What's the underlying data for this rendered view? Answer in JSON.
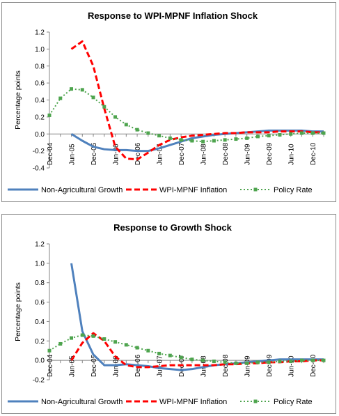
{
  "chart_data": [
    {
      "type": "line",
      "title": "Response to WPI-MPNF Inflation Shock",
      "ylabel": "Percentage points",
      "xlabel": "",
      "ylim": [
        -0.4,
        1.2
      ],
      "yticks": [
        "-0.4",
        "-0.2",
        "0.0",
        "0.2",
        "0.4",
        "0.6",
        "0.8",
        "1.0",
        "1.2"
      ],
      "ytick_values": [
        -0.4,
        -0.2,
        0.0,
        0.2,
        0.4,
        0.6,
        0.8,
        1.0,
        1.2
      ],
      "categories": [
        "Dec-04",
        "Jun-05",
        "Dec-05",
        "Jun-06",
        "Dec-06",
        "Jun-07",
        "Dec-07",
        "Jun-08",
        "Dec-08",
        "Jun-09",
        "Dec-09",
        "Jun-10",
        "Dec-10"
      ],
      "x_quarter_min": 0,
      "x_quarter_max": 25,
      "grid": false,
      "legend_position": "bottom",
      "series": [
        {
          "name": "Non-Agricultural Growth",
          "color": "#4f81bd",
          "style": "solid",
          "x": [
            2,
            3,
            4,
            5,
            6,
            7,
            8,
            9,
            10,
            11,
            12,
            13,
            14,
            15,
            16,
            17,
            18,
            19,
            20,
            21,
            22,
            23,
            24,
            25
          ],
          "values": [
            0.0,
            -0.08,
            -0.15,
            -0.18,
            -0.19,
            -0.19,
            -0.2,
            -0.2,
            -0.17,
            -0.13,
            -0.09,
            -0.05,
            -0.03,
            -0.01,
            0.0,
            0.01,
            0.02,
            0.03,
            0.04,
            0.04,
            0.04,
            0.04,
            0.03,
            0.03
          ]
        },
        {
          "name": "WPI-MPNF Inflation",
          "color": "#ff0000",
          "style": "dashed",
          "x": [
            2,
            3,
            4,
            5,
            6,
            7,
            8,
            9,
            10,
            11,
            12,
            13,
            14,
            15,
            16,
            17,
            18,
            19,
            20,
            21,
            22,
            23,
            24,
            25
          ],
          "values": [
            1.0,
            1.09,
            0.8,
            0.3,
            -0.15,
            -0.29,
            -0.3,
            -0.22,
            -0.13,
            -0.07,
            -0.04,
            -0.02,
            -0.01,
            0.0,
            0.01,
            0.01,
            0.02,
            0.02,
            0.02,
            0.03,
            0.03,
            0.03,
            0.02,
            0.02
          ]
        },
        {
          "name": "Policy Rate",
          "color": "#4ea44e",
          "style": "dotted-square",
          "x": [
            0,
            1,
            2,
            3,
            4,
            5,
            6,
            7,
            8,
            9,
            10,
            11,
            12,
            13,
            14,
            15,
            16,
            17,
            18,
            19,
            20,
            21,
            22,
            23,
            24,
            25
          ],
          "values": [
            0.22,
            0.42,
            0.53,
            0.52,
            0.43,
            0.32,
            0.2,
            0.11,
            0.05,
            0.01,
            -0.02,
            -0.05,
            -0.07,
            -0.08,
            -0.09,
            -0.08,
            -0.07,
            -0.06,
            -0.05,
            -0.03,
            -0.02,
            -0.01,
            0.0,
            0.01,
            0.01,
            0.01
          ]
        }
      ]
    },
    {
      "type": "line",
      "title": "Response to Growth Shock",
      "ylabel": "Percentage points",
      "xlabel": "",
      "ylim": [
        -0.2,
        1.2
      ],
      "yticks": [
        "-0.2",
        "0.0",
        "0.2",
        "0.4",
        "0.6",
        "0.8",
        "1.0",
        "1.2"
      ],
      "ytick_values": [
        -0.2,
        0.0,
        0.2,
        0.4,
        0.6,
        0.8,
        1.0,
        1.2
      ],
      "categories": [
        "Dec-04",
        "Jun-05",
        "Dec-05",
        "Jun-06",
        "Dec-06",
        "Jun-07",
        "Dec-07",
        "Jun-08",
        "Dec-08",
        "Jun-09",
        "Dec-09",
        "Jun-10",
        "Dec-10"
      ],
      "x_quarter_min": 0,
      "x_quarter_max": 25,
      "grid": false,
      "legend_position": "bottom",
      "series": [
        {
          "name": "Non-Agricultural Growth",
          "color": "#4f81bd",
          "style": "solid",
          "x": [
            2,
            3,
            4,
            5,
            6,
            7,
            8,
            9,
            10,
            11,
            12,
            13,
            14,
            15,
            16,
            17,
            18,
            19,
            20,
            21,
            22,
            23,
            24,
            25
          ],
          "values": [
            1.0,
            0.3,
            0.06,
            -0.05,
            -0.05,
            -0.04,
            -0.05,
            -0.06,
            -0.08,
            -0.09,
            -0.1,
            -0.09,
            -0.07,
            -0.05,
            -0.04,
            -0.03,
            -0.02,
            -0.01,
            0.0,
            0.01,
            0.01,
            0.01,
            0.01,
            0.01
          ]
        },
        {
          "name": "WPI-MPNF Inflation",
          "color": "#ff0000",
          "style": "dashed",
          "x": [
            2,
            3,
            4,
            5,
            6,
            7,
            8,
            9,
            10,
            11,
            12,
            13,
            14,
            15,
            16,
            17,
            18,
            19,
            20,
            21,
            22,
            23,
            24,
            25
          ],
          "values": [
            0.0,
            0.18,
            0.28,
            0.2,
            0.04,
            -0.05,
            -0.07,
            -0.07,
            -0.06,
            -0.05,
            -0.05,
            -0.05,
            -0.05,
            -0.05,
            -0.04,
            -0.04,
            -0.03,
            -0.03,
            -0.02,
            -0.02,
            -0.01,
            -0.01,
            0.0,
            0.0
          ]
        },
        {
          "name": "Policy Rate",
          "color": "#4ea44e",
          "style": "dotted-square",
          "x": [
            0,
            1,
            2,
            3,
            4,
            5,
            6,
            7,
            8,
            9,
            10,
            11,
            12,
            13,
            14,
            15,
            16,
            17,
            18,
            19,
            20,
            21,
            22,
            23,
            24,
            25
          ],
          "values": [
            0.1,
            0.17,
            0.23,
            0.26,
            0.25,
            0.22,
            0.19,
            0.16,
            0.13,
            0.1,
            0.07,
            0.05,
            0.03,
            0.01,
            0.0,
            -0.01,
            -0.02,
            -0.03,
            -0.03,
            -0.02,
            -0.02,
            -0.01,
            -0.01,
            0.0,
            0.0,
            0.0
          ]
        }
      ]
    }
  ]
}
